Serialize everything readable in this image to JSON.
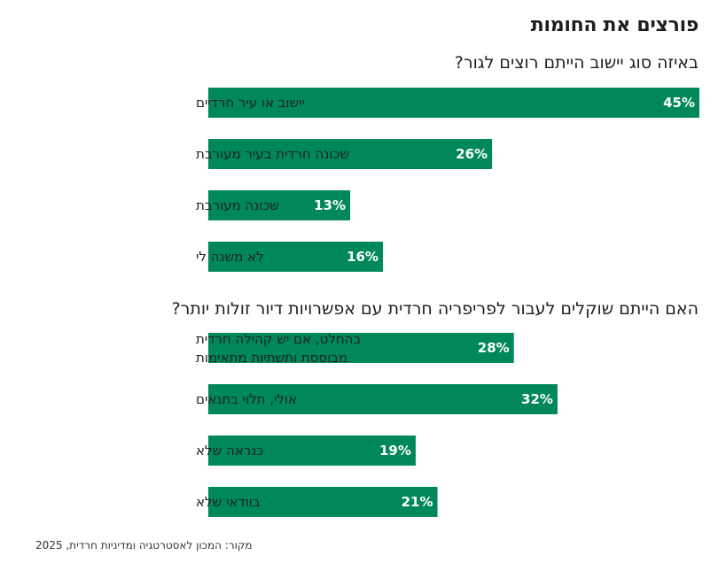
{
  "title": "פורצים את החומות",
  "source": "מקור: המכון לאסטרטגיה ומדיניות חרדית, 2025",
  "colors": {
    "bar": "#00875a",
    "text": "#222222"
  },
  "chart_data": [
    {
      "type": "bar",
      "orientation": "horizontal",
      "title": "באיזה סוג יישוב הייתם רוצים לגור?",
      "categories": [
        "יישוב או עיר חרדיים",
        "שכונה חרדית בעיר מעורבת",
        "שכונה מעורבת",
        "לא משנה לי"
      ],
      "values": [
        45,
        26,
        13,
        16
      ],
      "labels": [
        "45%",
        "26%",
        "13%",
        "16%"
      ],
      "unit": "%",
      "xlim": [
        0,
        45
      ]
    },
    {
      "type": "bar",
      "orientation": "horizontal",
      "title": "האם הייתם שוקלים לעבור לפריפריה חרדית עם אפשרויות דיור זולות יותר?",
      "categories": [
        "בהחלט, אם יש קהילה חרדית מבוססת ותשתיות מתאימות",
        "אולי, תלוי בתנאים",
        "כנראה שלא",
        "בוודאי שלא"
      ],
      "values": [
        28,
        32,
        19,
        21
      ],
      "labels": [
        "28%",
        "32%",
        "19%",
        "21%"
      ],
      "unit": "%",
      "xlim": [
        0,
        45
      ]
    }
  ]
}
